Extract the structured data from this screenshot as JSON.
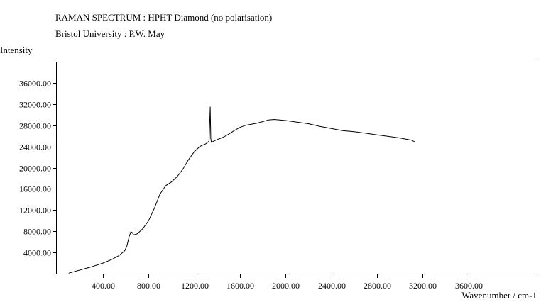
{
  "chart_data": {
    "type": "line",
    "title": "RAMAN SPECTRUM : HPHT Diamond (no polarisation)",
    "subtitle": "Bristol University : P.W. May",
    "xlabel": "Wavenumber / cm-1",
    "ylabel": "Intensity",
    "xlim": [
      -10,
      4200
    ],
    "ylim": [
      0,
      40000
    ],
    "xticks": [
      400,
      800,
      1200,
      1600,
      2000,
      2400,
      2800,
      3200,
      3600
    ],
    "xtick_labels": [
      "400.00",
      "800.00",
      "1200.00",
      "1600.00",
      "2000.00",
      "2400.00",
      "2800.00",
      "3200.00",
      "3600.00"
    ],
    "yticks": [
      4000,
      8000,
      12000,
      16000,
      20000,
      24000,
      28000,
      32000,
      36000
    ],
    "ytick_labels": [
      "4000.00",
      "8000.00",
      "12000.00",
      "16000.00",
      "20000.00",
      "24000.00",
      "28000.00",
      "32000.00",
      "36000.00"
    ],
    "grid": false,
    "series": [
      {
        "color": "#000000",
        "x": [
          100,
          200,
          300,
          400,
          480,
          540,
          590,
          610,
          630,
          645,
          655,
          670,
          700,
          750,
          800,
          850,
          900,
          950,
          1000,
          1050,
          1100,
          1150,
          1200,
          1250,
          1300,
          1330,
          1340,
          1345,
          1350,
          1360,
          1400,
          1450,
          1500,
          1550,
          1600,
          1650,
          1700,
          1750,
          1800,
          1850,
          1900,
          1950,
          2000,
          2100,
          2200,
          2300,
          2400,
          2500,
          2600,
          2700,
          2800,
          2900,
          3000,
          3100,
          3130
        ],
        "y": [
          100,
          700,
          1300,
          2000,
          2700,
          3400,
          4300,
          5200,
          7000,
          7900,
          7800,
          7300,
          7500,
          8500,
          10000,
          12300,
          15000,
          16600,
          17300,
          18300,
          19700,
          21500,
          23000,
          24000,
          24500,
          25000,
          31500,
          25500,
          24800,
          24900,
          25300,
          25700,
          26300,
          27000,
          27600,
          28000,
          28200,
          28400,
          28700,
          29000,
          29100,
          29000,
          28900,
          28600,
          28300,
          27800,
          27400,
          27000,
          26800,
          26500,
          26200,
          25900,
          25600,
          25200,
          24900
        ]
      }
    ]
  }
}
